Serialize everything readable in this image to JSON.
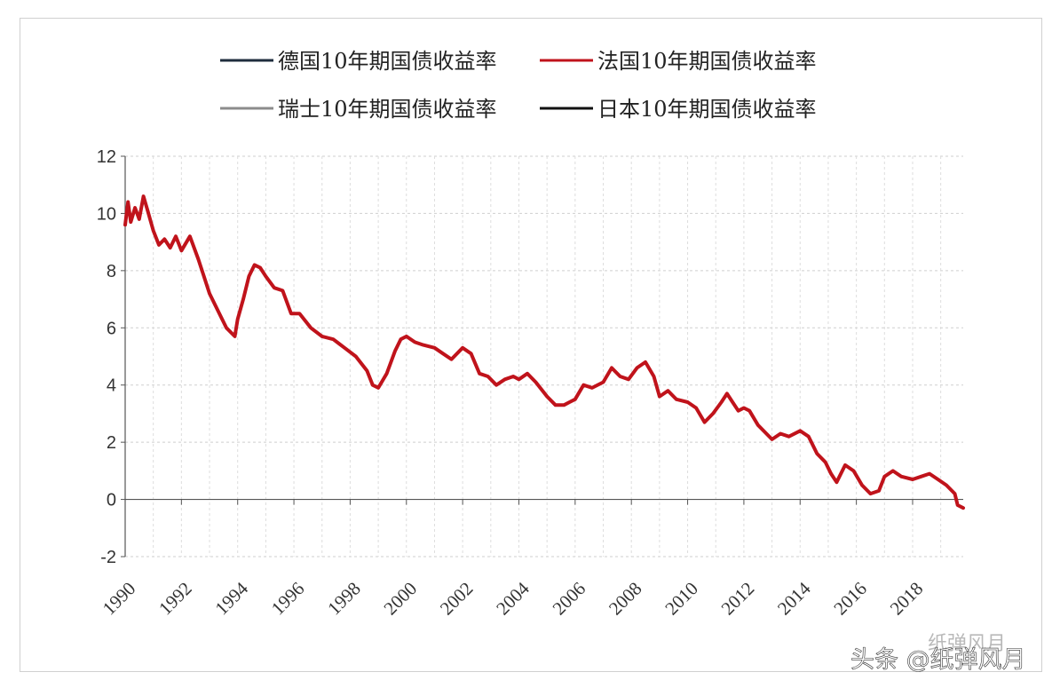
{
  "chart_data": {
    "type": "line",
    "title": "",
    "xlabel": "",
    "ylabel": "",
    "x_ticks": [
      "1990",
      "1992",
      "1994",
      "1996",
      "1998",
      "2000",
      "2002",
      "2004",
      "2006",
      "2008",
      "2010",
      "2012",
      "2014",
      "2016",
      "2018"
    ],
    "y_ticks": [
      "12",
      "10",
      "8",
      "6",
      "4",
      "2",
      "0",
      "-2"
    ],
    "xlim": [
      1990,
      2019.8
    ],
    "ylim": [
      -2,
      12
    ],
    "grid": true,
    "legend_position": "top",
    "series": [
      {
        "name": "德国10年期国债收益率",
        "color": "#1f2d3d",
        "visible_in_plot": false,
        "x": [],
        "y": []
      },
      {
        "name": "法国10年期国债收益率",
        "color": "#c0131b",
        "visible_in_plot": true,
        "x": [
          1990.0,
          1990.1,
          1990.2,
          1990.35,
          1990.5,
          1990.65,
          1990.8,
          1991.0,
          1991.2,
          1991.4,
          1991.6,
          1991.8,
          1992.0,
          1992.3,
          1992.6,
          1992.8,
          1993.0,
          1993.3,
          1993.6,
          1993.9,
          1994.0,
          1994.2,
          1994.4,
          1994.6,
          1994.8,
          1995.0,
          1995.3,
          1995.6,
          1995.9,
          1996.2,
          1996.6,
          1997.0,
          1997.4,
          1997.8,
          1998.2,
          1998.6,
          1998.8,
          1999.0,
          1999.3,
          1999.6,
          1999.8,
          2000.0,
          2000.3,
          2000.6,
          2001.0,
          2001.3,
          2001.6,
          2002.0,
          2002.3,
          2002.6,
          2002.9,
          2003.2,
          2003.5,
          2003.8,
          2004.0,
          2004.3,
          2004.6,
          2005.0,
          2005.3,
          2005.6,
          2005.8,
          2006.0,
          2006.3,
          2006.6,
          2007.0,
          2007.3,
          2007.6,
          2007.9,
          2008.2,
          2008.5,
          2008.8,
          2009.0,
          2009.3,
          2009.6,
          2010.0,
          2010.3,
          2010.6,
          2010.9,
          2011.2,
          2011.4,
          2011.6,
          2011.8,
          2012.0,
          2012.2,
          2012.5,
          2012.8,
          2013.0,
          2013.3,
          2013.6,
          2014.0,
          2014.3,
          2014.6,
          2014.9,
          2015.1,
          2015.3,
          2015.6,
          2015.9,
          2016.2,
          2016.5,
          2016.8,
          2017.0,
          2017.3,
          2017.6,
          2018.0,
          2018.3,
          2018.6,
          2018.9,
          2019.2,
          2019.5,
          2019.6,
          2019.8
        ],
        "y": [
          9.6,
          10.4,
          9.7,
          10.2,
          9.8,
          10.6,
          10.1,
          9.4,
          8.9,
          9.1,
          8.8,
          9.2,
          8.7,
          9.2,
          8.4,
          7.8,
          7.2,
          6.6,
          6.0,
          5.7,
          6.3,
          7.0,
          7.8,
          8.2,
          8.1,
          7.8,
          7.4,
          7.3,
          6.5,
          6.5,
          6.0,
          5.7,
          5.6,
          5.3,
          5.0,
          4.5,
          4.0,
          3.9,
          4.4,
          5.2,
          5.6,
          5.7,
          5.5,
          5.4,
          5.3,
          5.1,
          4.9,
          5.3,
          5.1,
          4.4,
          4.3,
          4.0,
          4.2,
          4.3,
          4.2,
          4.4,
          4.1,
          3.6,
          3.3,
          3.3,
          3.4,
          3.5,
          4.0,
          3.9,
          4.1,
          4.6,
          4.3,
          4.2,
          4.6,
          4.8,
          4.3,
          3.6,
          3.8,
          3.5,
          3.4,
          3.2,
          2.7,
          3.0,
          3.4,
          3.7,
          3.4,
          3.1,
          3.2,
          3.1,
          2.6,
          2.3,
          2.1,
          2.3,
          2.2,
          2.4,
          2.2,
          1.6,
          1.3,
          0.9,
          0.6,
          1.2,
          1.0,
          0.5,
          0.2,
          0.3,
          0.8,
          1.0,
          0.8,
          0.7,
          0.8,
          0.9,
          0.7,
          0.5,
          0.2,
          -0.2,
          -0.3
        ]
      },
      {
        "name": "瑞士10年期国债收益率",
        "color": "#8c8c8c",
        "visible_in_plot": false,
        "x": [],
        "y": []
      },
      {
        "name": "日本10年期国债收益率",
        "color": "#111111",
        "visible_in_plot": false,
        "x": [],
        "y": []
      }
    ]
  },
  "watermark": {
    "text": "头条 @纸弹风月",
    "faint_text": "纸弹风月"
  }
}
